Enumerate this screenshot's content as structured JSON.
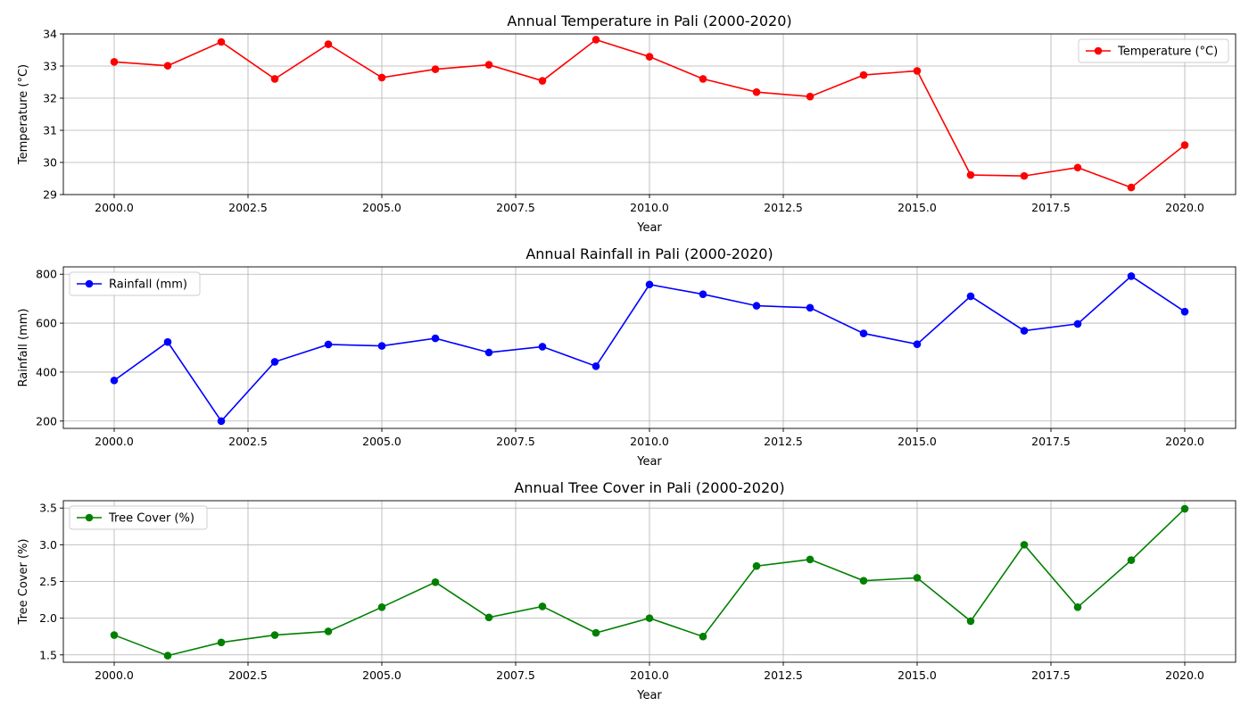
{
  "chart_data": [
    {
      "type": "line",
      "title": "Annual Temperature in Pali (2000-2020)",
      "xlabel": "Year",
      "ylabel": "Temperature (°C)",
      "xlim": [
        1999.05,
        2020.95
      ],
      "ylim": [
        29,
        34
      ],
      "xticks": [
        2000,
        2002.5,
        2005,
        2007.5,
        2010,
        2012.5,
        2015,
        2017.5,
        2020
      ],
      "xtick_labels": [
        "2000.0",
        "2002.5",
        "2005.0",
        "2007.5",
        "2010.0",
        "2012.5",
        "2015.0",
        "2017.5",
        "2020.0"
      ],
      "yticks": [
        29,
        30,
        31,
        32,
        33,
        34
      ],
      "ytick_labels": [
        "29",
        "30",
        "31",
        "32",
        "33",
        "34"
      ],
      "grid": true,
      "legend_position": "upper right",
      "x": [
        2000,
        2001,
        2002,
        2003,
        2004,
        2005,
        2006,
        2007,
        2008,
        2009,
        2010,
        2011,
        2012,
        2013,
        2014,
        2015,
        2016,
        2017,
        2018,
        2019,
        2020
      ],
      "series": [
        {
          "name": "Temperature (°C)",
          "color": "#ff0000",
          "values": [
            33.13,
            33.01,
            33.75,
            32.6,
            33.68,
            32.64,
            32.9,
            33.04,
            32.54,
            33.82,
            33.29,
            32.6,
            32.19,
            32.05,
            32.72,
            32.85,
            29.61,
            29.58,
            29.84,
            29.22,
            30.54
          ]
        }
      ]
    },
    {
      "type": "line",
      "title": "Annual Rainfall in Pali (2000-2020)",
      "xlabel": "Year",
      "ylabel": "Rainfall (mm)",
      "xlim": [
        1999.05,
        2020.95
      ],
      "ylim": [
        170,
        830
      ],
      "xticks": [
        2000,
        2002.5,
        2005,
        2007.5,
        2010,
        2012.5,
        2015,
        2017.5,
        2020
      ],
      "xtick_labels": [
        "2000.0",
        "2002.5",
        "2005.0",
        "2007.5",
        "2010.0",
        "2012.5",
        "2015.0",
        "2017.5",
        "2020.0"
      ],
      "yticks": [
        200,
        400,
        600,
        800
      ],
      "ytick_labels": [
        "200",
        "400",
        "600",
        "800"
      ],
      "grid": true,
      "legend_position": "upper left",
      "x": [
        2000,
        2001,
        2002,
        2003,
        2004,
        2005,
        2006,
        2007,
        2008,
        2009,
        2010,
        2011,
        2012,
        2013,
        2014,
        2015,
        2016,
        2017,
        2018,
        2019,
        2020
      ],
      "series": [
        {
          "name": "Rainfall (mm)",
          "color": "#0000ff",
          "values": [
            366,
            523,
            200,
            442,
            513,
            507,
            538,
            480,
            504,
            424,
            758,
            718,
            671,
            663,
            558,
            514,
            710,
            569,
            597,
            792,
            647
          ]
        }
      ]
    },
    {
      "type": "line",
      "title": "Annual Tree Cover in Pali (2000-2020)",
      "xlabel": "Year",
      "ylabel": "Tree Cover (%)",
      "xlim": [
        1999.05,
        2020.95
      ],
      "ylim": [
        1.4,
        3.6
      ],
      "xticks": [
        2000,
        2002.5,
        2005,
        2007.5,
        2010,
        2012.5,
        2015,
        2017.5,
        2020
      ],
      "xtick_labels": [
        "2000.0",
        "2002.5",
        "2005.0",
        "2007.5",
        "2010.0",
        "2012.5",
        "2015.0",
        "2017.5",
        "2020.0"
      ],
      "yticks": [
        1.5,
        2.0,
        2.5,
        3.0,
        3.5
      ],
      "ytick_labels": [
        "1.5",
        "2.0",
        "2.5",
        "3.0",
        "3.5"
      ],
      "grid": true,
      "legend_position": "upper left",
      "x": [
        2000,
        2001,
        2002,
        2003,
        2004,
        2005,
        2006,
        2007,
        2008,
        2009,
        2010,
        2011,
        2012,
        2013,
        2014,
        2015,
        2016,
        2017,
        2018,
        2019,
        2020
      ],
      "series": [
        {
          "name": "Tree Cover (%)",
          "color": "#008000",
          "values": [
            1.77,
            1.49,
            1.67,
            1.77,
            1.82,
            2.15,
            2.49,
            2.01,
            2.16,
            1.8,
            2.0,
            1.75,
            2.71,
            2.8,
            2.51,
            2.55,
            1.96,
            3.0,
            2.15,
            2.79,
            3.49
          ]
        }
      ]
    }
  ]
}
